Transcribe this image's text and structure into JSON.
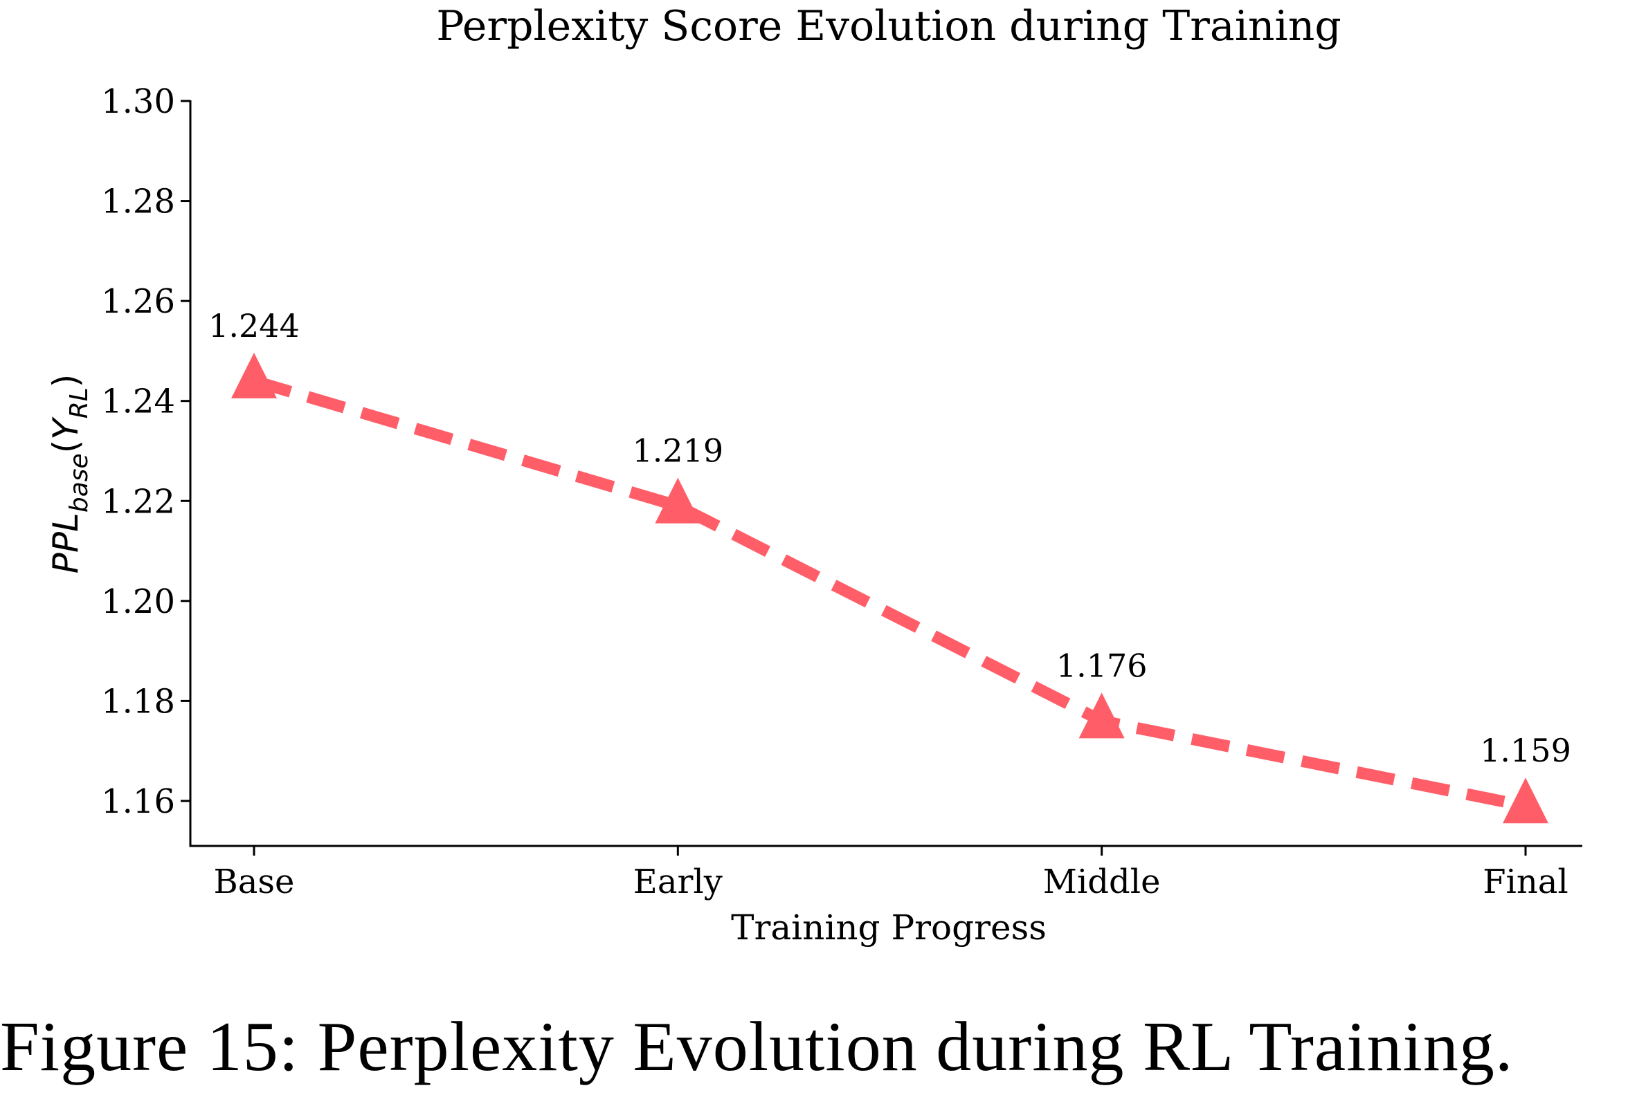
{
  "chart_data": {
    "type": "line",
    "title": "Perplexity Score Evolution during Training",
    "xlabel": "Training Progress",
    "ylabel": {
      "main": "PPL",
      "sub": "base",
      "arg": "Y",
      "arg_sub": "RL"
    },
    "categories": [
      "Base",
      "Early",
      "Middle",
      "Final"
    ],
    "series": [
      {
        "name": "PPL_base(Y_RL)",
        "values": [
          1.244,
          1.219,
          1.176,
          1.159
        ],
        "labels": [
          "1.244",
          "1.219",
          "1.176",
          "1.159"
        ],
        "color": "#FF5E68",
        "line_style": "dashed",
        "marker": "triangle-up"
      }
    ],
    "ylim": [
      1.151,
      1.3
    ],
    "yticks": [
      1.16,
      1.18,
      1.2,
      1.22,
      1.24,
      1.26,
      1.28,
      1.3
    ],
    "ytick_labels": [
      "1.16",
      "1.18",
      "1.20",
      "1.22",
      "1.24",
      "1.26",
      "1.28",
      "1.30"
    ],
    "grid": false,
    "legend": "none",
    "spines": [
      "left",
      "bottom"
    ]
  },
  "caption": "Figure 15: Perplexity Evolution during RL Training."
}
